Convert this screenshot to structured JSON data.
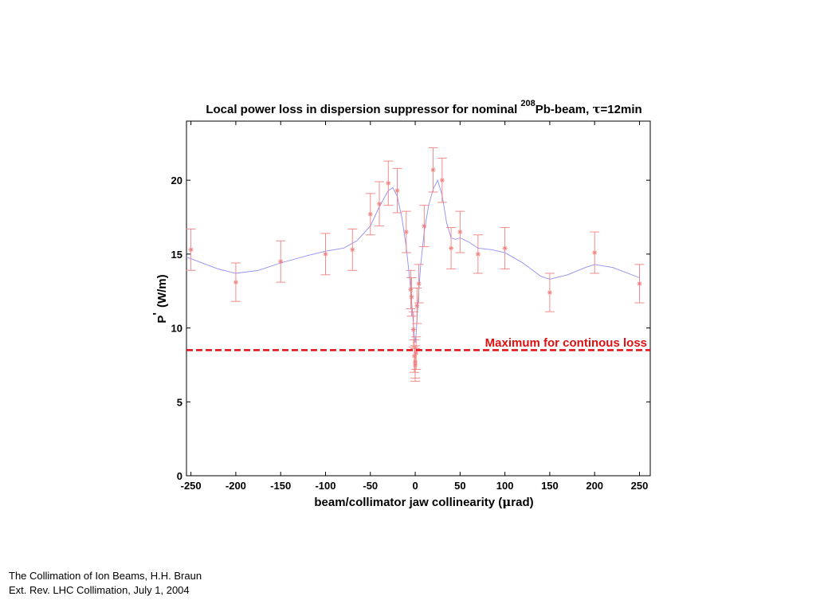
{
  "chart_data": {
    "type": "scatter",
    "title": "Local power loss in dispersion suppressor for nominal Pb-beam, τ=12min",
    "title_parts": {
      "prefix": "Local power loss in dispersion suppressor for nominal ",
      "superscript": "208",
      "suffix": "Pb-beam, ",
      "tau": "τ",
      "tail": "=12min"
    },
    "xlabel": "beam/collimator jaw collinearity (μrad)",
    "xlabel_parts": {
      "text": "beam/collimator jaw collinearity (",
      "mu": "μ",
      "end": "rad)"
    },
    "ylabel": "P' (W/m)",
    "ylabel_parts": {
      "p": "P",
      "prime": "'",
      "unit": "(W/m)"
    },
    "xlim": [
      -255,
      262
    ],
    "ylim": [
      0,
      24
    ],
    "xticks": [
      -250,
      -200,
      -150,
      -100,
      -50,
      0,
      50,
      100,
      150,
      200,
      250
    ],
    "yticks": [
      0,
      5,
      10,
      15,
      20
    ],
    "grid": false,
    "colors": {
      "points": "#f08080",
      "curve": "#8f8ff5",
      "threshold": "#dd1111",
      "axis": "#000000"
    },
    "series": [
      {
        "marker": "asterisk",
        "points": [
          {
            "x": -250,
            "y": 15.3,
            "err": 1.4
          },
          {
            "x": -200,
            "y": 13.1,
            "err": 1.3
          },
          {
            "x": -150,
            "y": 14.5,
            "err": 1.4
          },
          {
            "x": -100,
            "y": 15.0,
            "err": 1.4
          },
          {
            "x": -70,
            "y": 15.3,
            "err": 1.4
          },
          {
            "x": -50,
            "y": 17.7,
            "err": 1.4
          },
          {
            "x": -40,
            "y": 18.4,
            "err": 1.5
          },
          {
            "x": -30,
            "y": 19.8,
            "err": 1.5
          },
          {
            "x": -20,
            "y": 19.3,
            "err": 1.5
          },
          {
            "x": -10,
            "y": 16.5,
            "err": 1.4
          },
          {
            "x": -5,
            "y": 12.6,
            "err": 1.3
          },
          {
            "x": -4,
            "y": 12.1,
            "err": 1.3
          },
          {
            "x": -2,
            "y": 9.9,
            "err": 1.2
          },
          {
            "x": -1,
            "y": 8.1,
            "err": 1.1
          },
          {
            "x": 0,
            "y": 7.7,
            "err": 1.1
          },
          {
            "x": 0,
            "y": 7.5,
            "err": 1.1
          },
          {
            "x": 1,
            "y": 8.3,
            "err": 1.1
          },
          {
            "x": 2,
            "y": 11.5,
            "err": 1.2
          },
          {
            "x": 4,
            "y": 13.0,
            "err": 1.3
          },
          {
            "x": 10,
            "y": 16.9,
            "err": 1.4
          },
          {
            "x": 20,
            "y": 20.7,
            "err": 1.5
          },
          {
            "x": 30,
            "y": 20.0,
            "err": 1.5
          },
          {
            "x": 40,
            "y": 15.4,
            "err": 1.4
          },
          {
            "x": 50,
            "y": 16.5,
            "err": 1.4
          },
          {
            "x": 70,
            "y": 15.0,
            "err": 1.3
          },
          {
            "x": 100,
            "y": 15.4,
            "err": 1.4
          },
          {
            "x": 150,
            "y": 12.4,
            "err": 1.3
          },
          {
            "x": 200,
            "y": 15.1,
            "err": 1.4
          },
          {
            "x": 250,
            "y": 13.0,
            "err": 1.3
          }
        ]
      },
      {
        "type": "line",
        "x": [
          -255,
          -220,
          -200,
          -175,
          -150,
          -120,
          -100,
          -80,
          -65,
          -50,
          -40,
          -30,
          -25,
          -20,
          -15,
          -10,
          -6,
          -3,
          -1,
          0,
          1,
          3,
          6,
          10,
          15,
          20,
          25,
          30,
          35,
          40,
          45,
          50,
          60,
          70,
          85,
          100,
          120,
          140,
          150,
          170,
          190,
          200,
          220,
          250
        ],
        "y": [
          14.8,
          14.0,
          13.7,
          13.9,
          14.4,
          14.9,
          15.2,
          15.4,
          15.9,
          16.9,
          18.2,
          19.3,
          19.5,
          18.9,
          17.5,
          15.5,
          13.2,
          11.0,
          9.5,
          9.0,
          9.6,
          11.6,
          14.2,
          16.5,
          18.3,
          19.4,
          20.0,
          19.0,
          17.1,
          16.1,
          16.0,
          16.1,
          15.8,
          15.4,
          15.3,
          15.1,
          14.4,
          13.5,
          13.3,
          13.6,
          14.1,
          14.3,
          14.1,
          13.4
        ]
      }
    ],
    "threshold": {
      "y": 8.5,
      "style": "dashed"
    },
    "annotations": [
      {
        "text": "Maximum for continous loss"
      }
    ]
  },
  "footer": {
    "line1": "The Collimation of Ion Beams, H.H. Braun",
    "line2": "Ext. Rev. LHC Collimation, July 1, 2004"
  }
}
